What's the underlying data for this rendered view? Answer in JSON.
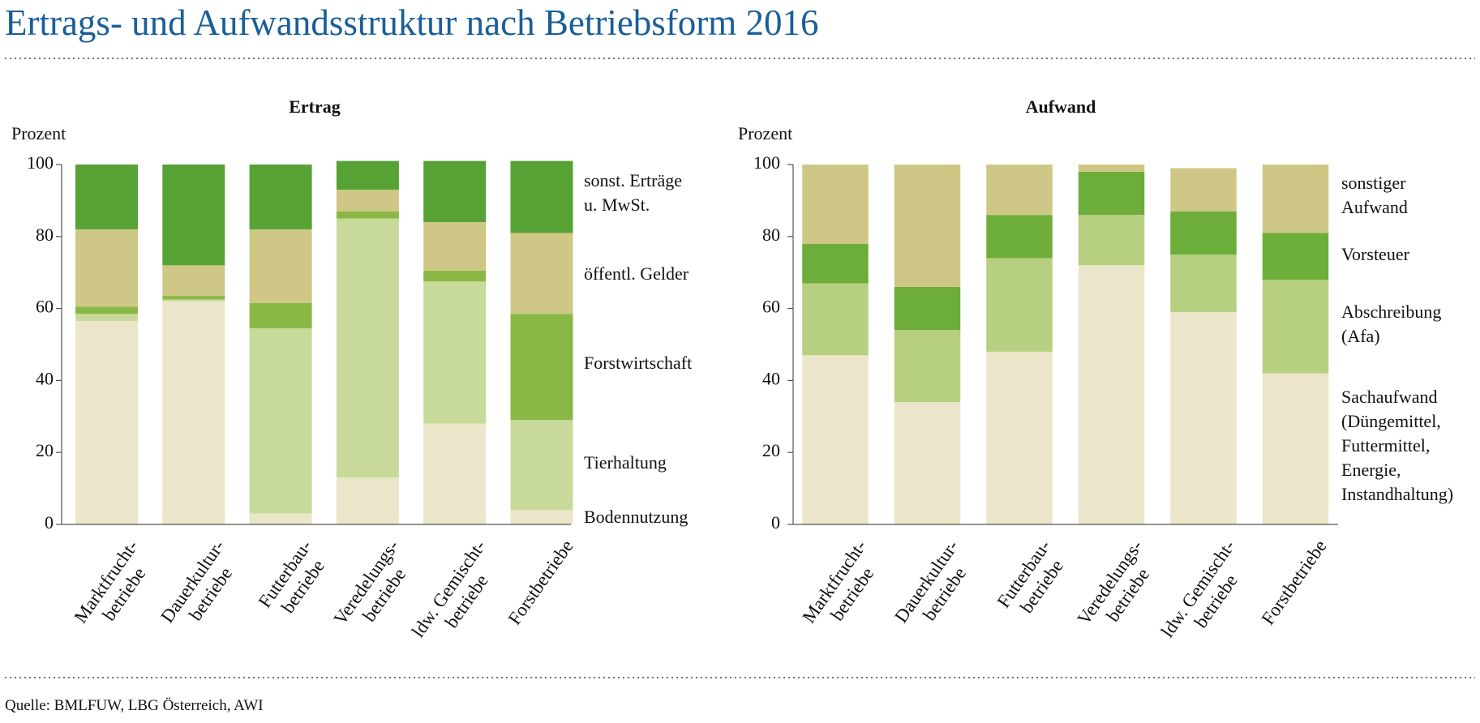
{
  "title": "Ertrags- und Aufwandsstruktur nach Betriebsform 2016",
  "source": "Quelle: BMLFUW, LBG Österreich, AWI",
  "chart_data": [
    {
      "type": "stacked_bar",
      "title": "Ertrag",
      "y_label": "Prozent",
      "categories": [
        "Marktfrucht-\nbetriebe",
        "Dauerkultur-\nbetriebe",
        "Futterbau-\nbetriebe",
        "Veredelungs-\nbetriebe",
        "ldw. Gemischt-\nbetriebe",
        "Forstbetriebe"
      ],
      "ylim": [
        0,
        100
      ],
      "yticks": [
        0,
        20,
        40,
        60,
        80,
        100
      ],
      "series": [
        {
          "name": "Bodennutzung",
          "color": "#ebe6c9",
          "values": [
            56.5,
            62,
            3,
            13,
            28,
            4
          ]
        },
        {
          "name": "Tierhaltung",
          "color": "#c8da9a",
          "values": [
            2,
            0.5,
            51.5,
            72,
            39.5,
            25
          ]
        },
        {
          "name": "Forstwirtschaft",
          "color": "#8ab846",
          "values": [
            2,
            1,
            7,
            2,
            3,
            29.5
          ]
        },
        {
          "name": "öffentl. Gelder",
          "color": "#cfc785",
          "values": [
            21.5,
            8.5,
            20.5,
            6,
            13.5,
            22.5
          ]
        },
        {
          "name": "sonst. Erträge\nu. MwSt.",
          "color": "#56a234",
          "values": [
            18,
            28,
            18,
            8,
            17,
            20
          ]
        }
      ]
    },
    {
      "type": "stacked_bar",
      "title": "Aufwand",
      "y_label": "Prozent",
      "categories": [
        "Marktfrucht-\nbetriebe",
        "Dauerkultur-\nbetriebe",
        "Futterbau-\nbetriebe",
        "Veredelungs-\nbetriebe",
        "ldw. Gemischt-\nbetriebe",
        "Forstbetriebe"
      ],
      "ylim": [
        0,
        100
      ],
      "yticks": [
        0,
        20,
        40,
        60,
        80,
        100
      ],
      "series": [
        {
          "name": "Sachaufwand\n(Düngemittel,\nFuttermittel,\nEnergie,\nInstandhaltung)",
          "color": "#ebe6c9",
          "values": [
            47,
            34,
            48,
            72,
            59,
            42
          ]
        },
        {
          "name": "Abschreibung\n(Afa)",
          "color": "#b6cf80",
          "values": [
            20,
            20,
            26,
            14,
            16,
            26
          ]
        },
        {
          "name": "Vorsteuer",
          "color": "#6dad3a",
          "values": [
            11,
            12,
            12,
            12,
            12,
            13
          ]
        },
        {
          "name": "sonstiger\nAufwand",
          "color": "#cfc785",
          "values": [
            22,
            34,
            14,
            2,
            12,
            19
          ]
        }
      ]
    }
  ]
}
